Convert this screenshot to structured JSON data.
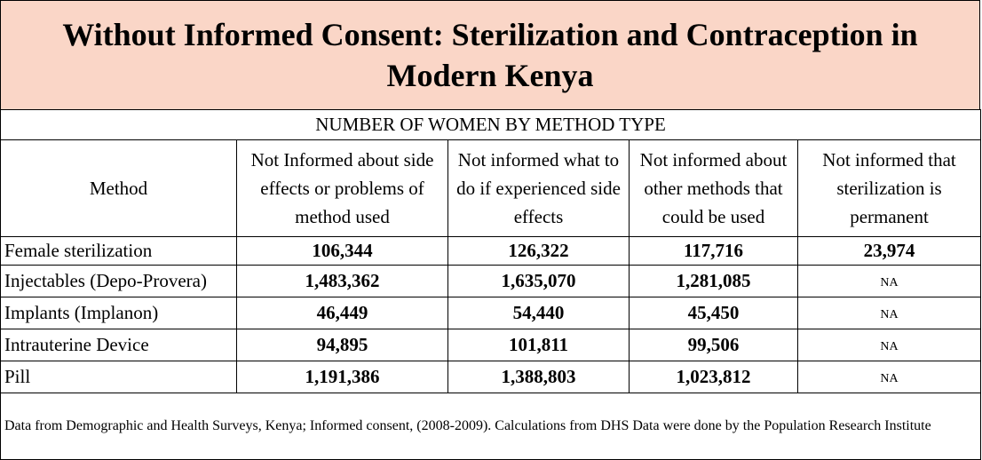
{
  "title": "Without Informed Consent: Sterilization and Contraception in Modern Kenya",
  "subtitle": "NUMBER OF WOMEN BY METHOD TYPE",
  "headers": [
    "Method",
    "Not Informed about side effects or problems of method used",
    "Not informed what to do if experienced side effects",
    "Not informed about other methods that could be used",
    "Not informed that sterilization is permanent"
  ],
  "rows": [
    {
      "method": "Female sterilization",
      "values": [
        "106,344",
        "126,322",
        "117,716",
        "23,974"
      ]
    },
    {
      "method": "Injectables (Depo-Provera)",
      "values": [
        "1,483,362",
        "1,635,070",
        "1,281,085",
        "NA"
      ]
    },
    {
      "method": "Implants (Implanon)",
      "values": [
        "46,449",
        "54,440",
        "45,450",
        "NA"
      ]
    },
    {
      "method": "Intrauterine Device",
      "values": [
        "94,895",
        "101,811",
        "99,506",
        "NA"
      ]
    },
    {
      "method": "Pill",
      "values": [
        "1,191,386",
        "1,388,803",
        "1,023,812",
        "NA"
      ]
    }
  ],
  "footnote": "Data from Demographic and Health Surveys, Kenya; Informed consent, (2008-2009). Calculations from DHS Data were done by the Population Research Institute",
  "colors": {
    "title_bg": "#FAD6C7",
    "border": "#000000"
  }
}
